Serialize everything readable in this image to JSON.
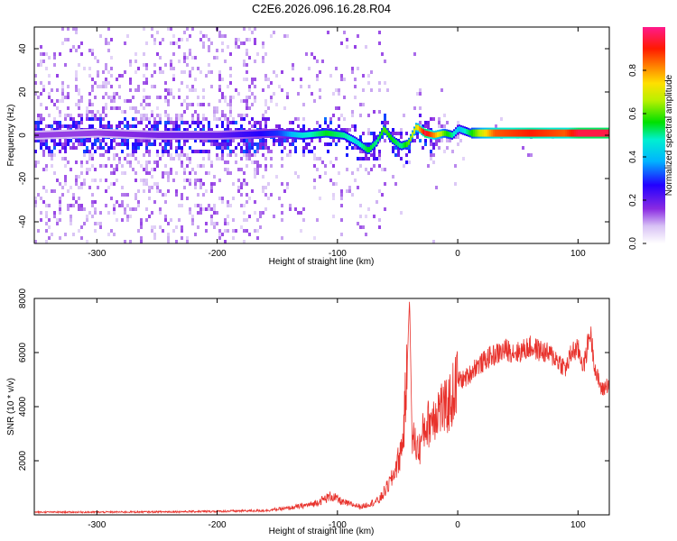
{
  "title": "C2E6.2026.096.16.28.R04",
  "colorbar": {
    "label": "Normalized spectral amplitude",
    "range": [
      0,
      1
    ],
    "ticks": [
      0.0,
      0.2,
      0.4,
      0.6,
      0.8
    ],
    "tick_labels": [
      "0.0",
      "0.2",
      "0.4",
      "0.6",
      "0.8"
    ],
    "colormap": "rainbow (white/lavender → violet → blue → cyan → green → yellow → orange → red → magenta)"
  },
  "chart_data": [
    {
      "type": "heatmap",
      "xlabel": "Height of straight line (km)",
      "ylabel": "Frequency (Hz)",
      "xlim": [
        -352,
        126
      ],
      "ylim": [
        -50,
        50
      ],
      "xticks": [
        -300,
        -200,
        -100,
        0,
        100
      ],
      "xtick_labels": [
        "-300",
        "-200",
        "-100",
        "0",
        "100"
      ],
      "yticks": [
        -40,
        -20,
        0,
        20,
        40
      ],
      "ytick_labels": [
        "-40",
        "-20",
        "0",
        "20",
        "40"
      ],
      "ridge": {
        "x": [
          -352,
          -300,
          -250,
          -200,
          -150,
          -130,
          -110,
          -95,
          -85,
          -75,
          -68,
          -62,
          -55,
          -48,
          -42,
          -35,
          -28,
          -20,
          -12,
          -5,
          0,
          10,
          30,
          60,
          88,
          100,
          126
        ],
        "y": [
          0,
          1,
          0,
          0,
          1,
          0,
          1,
          0,
          -3,
          -7,
          -3,
          3,
          -2,
          -5,
          -4,
          4,
          1,
          0,
          1,
          0,
          3,
          1,
          1,
          1,
          1,
          1,
          1
        ],
        "amplitude": [
          0.15,
          0.15,
          0.18,
          0.2,
          0.3,
          0.45,
          0.55,
          0.5,
          0.45,
          0.55,
          0.5,
          0.6,
          0.55,
          0.5,
          0.6,
          0.7,
          0.95,
          0.8,
          0.6,
          0.5,
          0.4,
          0.55,
          0.85,
          0.9,
          0.85,
          0.95,
          0.95
        ]
      }
    },
    {
      "type": "line",
      "xlabel": "Height of straight line (km)",
      "ylabel": "SNR (10 * v/v)",
      "xlim": [
        -352,
        126
      ],
      "ylim": [
        0,
        8000
      ],
      "xticks": [
        -300,
        -200,
        -100,
        0,
        100
      ],
      "xtick_labels": [
        "-300",
        "-200",
        "-100",
        "0",
        "100"
      ],
      "yticks": [
        2000,
        4000,
        6000,
        8000
      ],
      "ytick_labels": [
        "2000",
        "4000",
        "6000",
        "8000"
      ],
      "color": "#e8322c",
      "series": [
        {
          "x": [
            -352,
            -300,
            -250,
            -200,
            -160,
            -140,
            -120,
            -105,
            -95,
            -80,
            -65,
            -55,
            -48,
            -45,
            -42,
            -40,
            -38,
            -35,
            -32,
            -28,
            -24,
            -20,
            -15,
            -10,
            -5,
            0,
            5,
            10,
            15,
            20,
            25,
            30,
            40,
            50,
            60,
            70,
            80,
            90,
            95,
            100,
            105,
            110,
            115,
            120,
            126
          ],
          "y": [
            100,
            100,
            110,
            130,
            160,
            250,
            400,
            700,
            450,
            300,
            550,
            1300,
            2200,
            3000,
            5600,
            8000,
            3000,
            2600,
            2400,
            3200,
            3400,
            3700,
            4000,
            3900,
            4300,
            5000,
            5000,
            5200,
            5500,
            5600,
            5800,
            5900,
            6100,
            6000,
            6200,
            6050,
            5850,
            5400,
            6050,
            6100,
            5500,
            6800,
            5200,
            4600,
            4900
          ]
        }
      ]
    }
  ]
}
